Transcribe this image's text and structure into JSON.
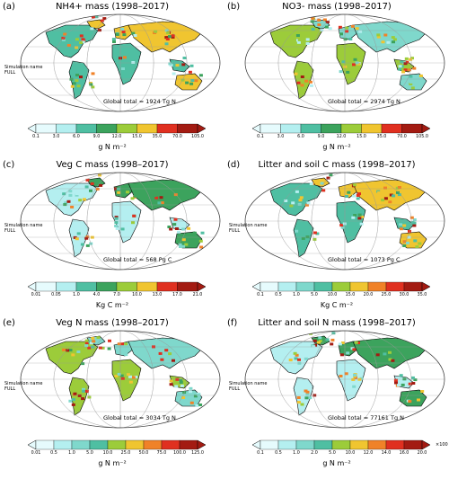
{
  "colors": [
    "#e6fbfd",
    "#b4eff0",
    "#7fd8cc",
    "#4fbfa2",
    "#3ca35d",
    "#9ccc3a",
    "#f0c530",
    "#f08228",
    "#e03020",
    "#a31b12"
  ],
  "panels": [
    {
      "letter": "(a)",
      "title": "NH4+ mass (1998–2017)",
      "sim_name": "Simulation name",
      "sim_value": "FULL",
      "total": "Global total = 1924 Tg N",
      "ticks": [
        "0.1",
        "3.0",
        "6.0",
        "9.0",
        "12.0",
        "15.0",
        "35.0",
        "70.0",
        "105.0"
      ],
      "unit": "g N m⁻²",
      "mult": ""
    },
    {
      "letter": "(b)",
      "title": "NO3- mass (1998–2017)",
      "sim_name": "",
      "sim_value": "",
      "total": "Global total = 2974 Tg N",
      "ticks": [
        "0.1",
        "3.0",
        "6.0",
        "9.0",
        "12.0",
        "15.0",
        "35.0",
        "70.0",
        "105.0"
      ],
      "unit": "g N m⁻²",
      "mult": ""
    },
    {
      "letter": "(c)",
      "title": "Veg C mass (1998–2017)",
      "sim_name": "Simulation name",
      "sim_value": "FULL",
      "total": "Global total = 568 Pg C",
      "ticks": [
        "0.01",
        "0.05",
        "1.0",
        "4.0",
        "7.0",
        "10.0",
        "13.0",
        "17.0",
        "21.0"
      ],
      "unit": "Kg C m⁻²",
      "mult": ""
    },
    {
      "letter": "(d)",
      "title": "Litter and soil C mass (1998–2017)",
      "sim_name": "Simulation name",
      "sim_value": "FULL",
      "total": "Global total = 1073 Pg C",
      "ticks": [
        "0.1",
        "0.5",
        "1.0",
        "5.0",
        "10.0",
        "15.0",
        "20.0",
        "25.0",
        "30.0",
        "35.0"
      ],
      "unit": "Kg C m⁻²",
      "mult": ""
    },
    {
      "letter": "(e)",
      "title": "Veg N mass (1998–2017)",
      "sim_name": "Simulation name",
      "sim_value": "FULL",
      "total": "Global total = 3034 Tg N",
      "ticks": [
        "0.01",
        "0.5",
        "1.0",
        "5.0",
        "10.0",
        "25.0",
        "50.0",
        "75.0",
        "100.0",
        "125.0"
      ],
      "unit": "g N m⁻²",
      "mult": ""
    },
    {
      "letter": "(f)",
      "title": "Litter and soil N mass (1998–2017)",
      "sim_name": "Simulation name",
      "sim_value": "FULL",
      "total": "Global total = 77161 Tg N",
      "ticks": [
        "0.1",
        "0.5",
        "1.0",
        "2.0",
        "5.0",
        "10.0",
        "12.0",
        "14.0",
        "16.0",
        "20.0"
      ],
      "unit": "g N m⁻²",
      "mult": "×100"
    }
  ]
}
